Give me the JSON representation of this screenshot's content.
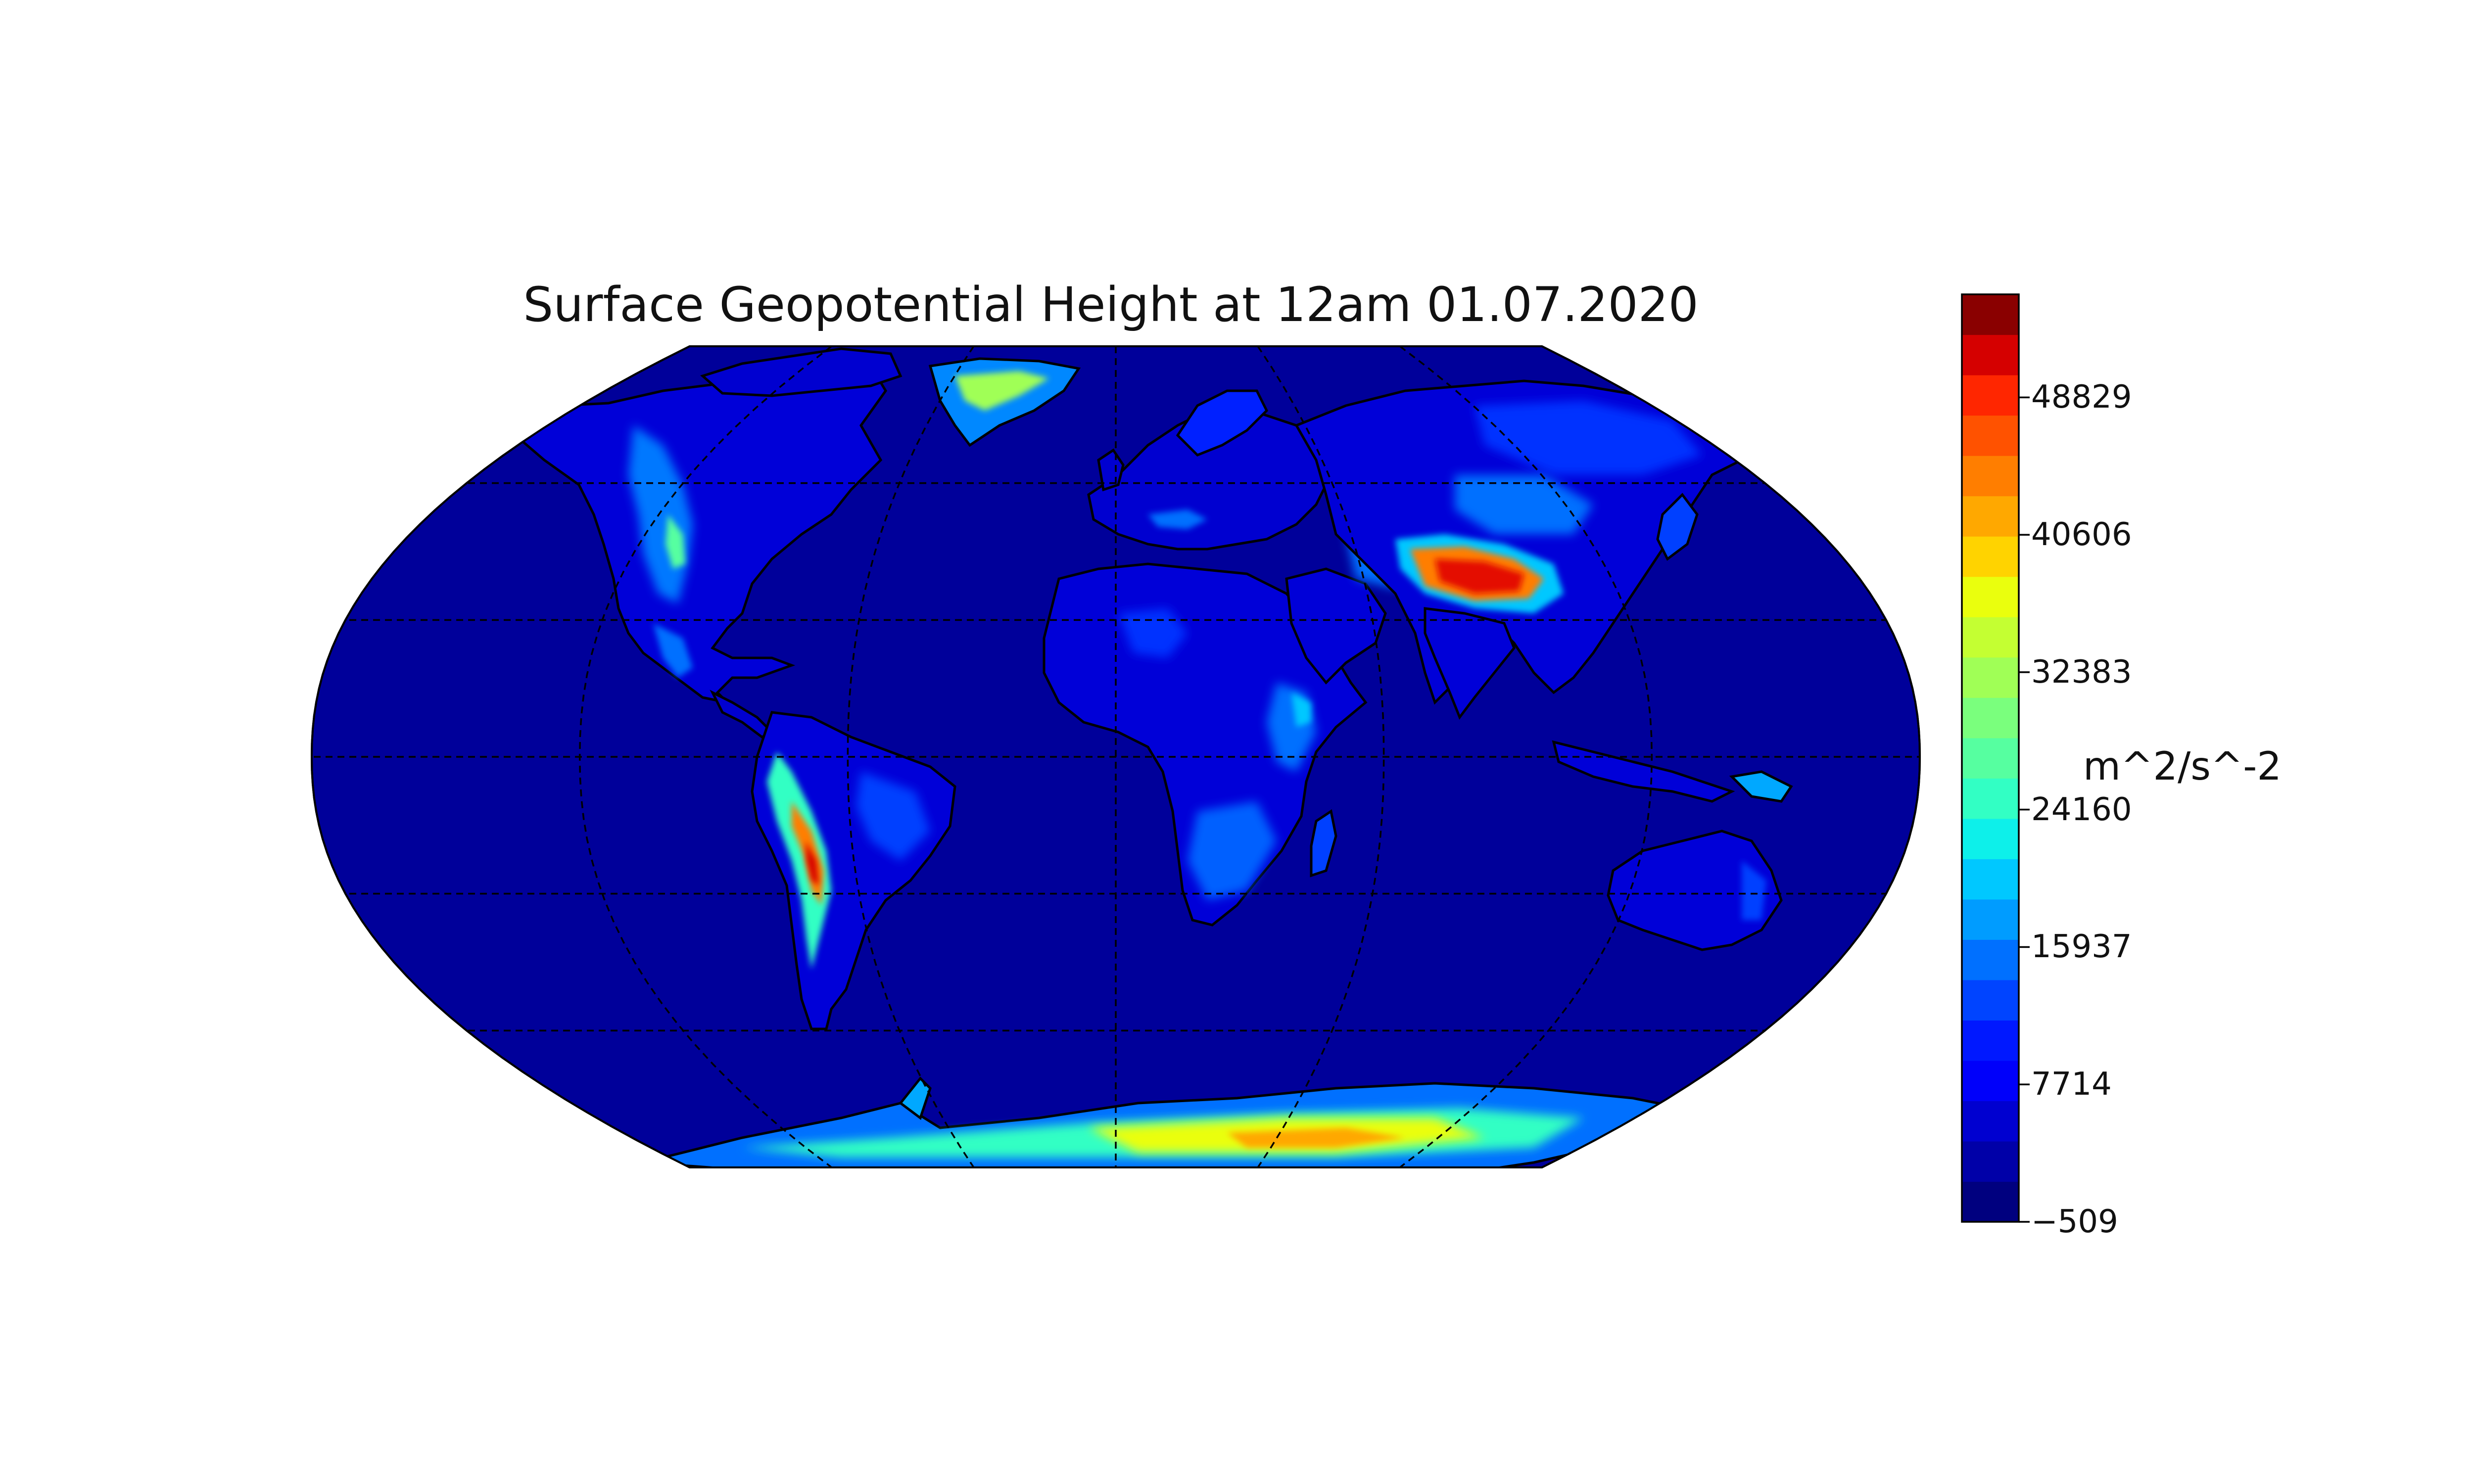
{
  "title": "Surface Geopotential Height at 12am 01.07.2020",
  "colorbar": {
    "unit_label": "m^2/s^-2",
    "ticks": [
      {
        "value": -509,
        "label": "−509"
      },
      {
        "value": 7714,
        "label": "7714"
      },
      {
        "value": 15937,
        "label": "15937"
      },
      {
        "value": 24160,
        "label": "24160"
      },
      {
        "value": 32383,
        "label": "32383"
      },
      {
        "value": 40606,
        "label": "40606"
      },
      {
        "value": 48829,
        "label": "48829"
      }
    ],
    "min": -509,
    "max": 54996,
    "levels": 20,
    "colormap": [
      "#00007f",
      "#0000a8",
      "#0000d0",
      "#0000fa",
      "#0018ff",
      "#0044ff",
      "#0070ff",
      "#009cff",
      "#00c8ff",
      "#0df0ea",
      "#32ffc4",
      "#56ffa0",
      "#7aff7d",
      "#a0ff56",
      "#c4ff32",
      "#eaff0d",
      "#ffd300",
      "#ffa800",
      "#ff7e00",
      "#ff5200",
      "#ff2600",
      "#d50000",
      "#8a0000"
    ]
  },
  "map": {
    "projection": "Robinson",
    "ocean_color": "#00009a",
    "coastline_color": "#000000",
    "graticule_style": "dashed"
  },
  "chart_data": {
    "type": "heatmap",
    "title": "Surface Geopotential Height at 12am 01.07.2020",
    "colorbar_label": "m^2/s^-2",
    "range": [
      -509,
      54996
    ],
    "colorbar_ticks": [
      -509,
      7714,
      15937,
      24160,
      32383,
      40606,
      48829
    ]
  }
}
